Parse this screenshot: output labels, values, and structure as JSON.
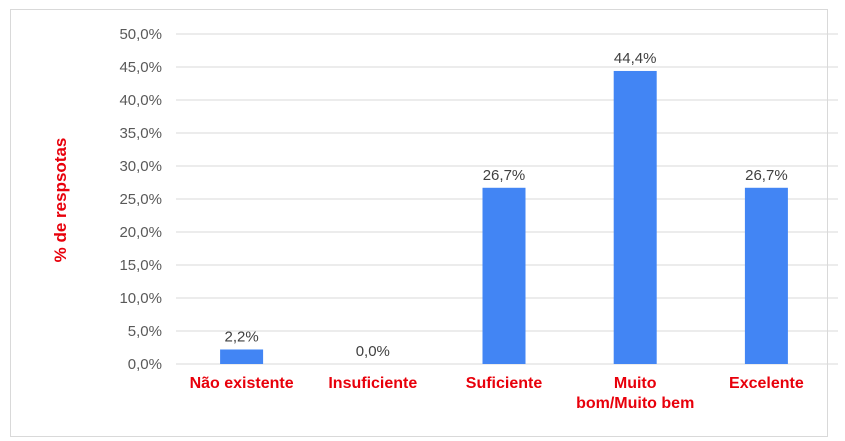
{
  "chart_data": {
    "type": "bar",
    "categories": [
      [
        "Não existente"
      ],
      [
        "Insuficiente"
      ],
      [
        "Suficiente"
      ],
      [
        "Muito",
        "bom/Muito bem"
      ],
      [
        "Excelente"
      ]
    ],
    "values": [
      2.2,
      0.0,
      26.7,
      44.4,
      26.7
    ],
    "value_labels": [
      "2,2%",
      "0,0%",
      "26,7%",
      "44,4%",
      "26,7%"
    ],
    "y_ticks": [
      "0,0%",
      "5,0%",
      "10,0%",
      "15,0%",
      "20,0%",
      "25,0%",
      "30,0%",
      "35,0%",
      "40,0%",
      "45,0%",
      "50,0%"
    ],
    "ylim": [
      0,
      50
    ],
    "ylabel": "% de respsotas",
    "xlabel": "",
    "title": "",
    "grid": true,
    "legend": "none",
    "colors": {
      "bar": "#4285f4",
      "category_text": "#e8000b",
      "ylabel_text": "#e8000b",
      "gridline": "#d9d9d9"
    }
  }
}
